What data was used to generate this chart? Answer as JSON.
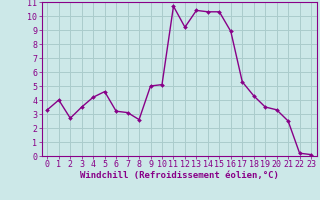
{
  "x": [
    0,
    1,
    2,
    3,
    4,
    5,
    6,
    7,
    8,
    9,
    10,
    11,
    12,
    13,
    14,
    15,
    16,
    17,
    18,
    19,
    20,
    21,
    22,
    23
  ],
  "y": [
    3.3,
    4.0,
    2.7,
    3.5,
    4.2,
    4.6,
    3.2,
    3.1,
    2.6,
    5.0,
    5.1,
    10.7,
    9.2,
    10.4,
    10.3,
    10.3,
    8.9,
    5.3,
    4.3,
    3.5,
    3.3,
    2.5,
    0.2,
    0.1
  ],
  "line_color": "#880088",
  "marker": "D",
  "marker_size": 2.0,
  "bg_color": "#cce8e8",
  "grid_color": "#aacccc",
  "xlabel": "Windchill (Refroidissement éolien,°C)",
  "xlabel_fontsize": 6.5,
  "xlim": [
    -0.5,
    23.5
  ],
  "ylim": [
    0,
    11
  ],
  "yticks": [
    0,
    1,
    2,
    3,
    4,
    5,
    6,
    7,
    8,
    9,
    10,
    11
  ],
  "xticks": [
    0,
    1,
    2,
    3,
    4,
    5,
    6,
    7,
    8,
    9,
    10,
    11,
    12,
    13,
    14,
    15,
    16,
    17,
    18,
    19,
    20,
    21,
    22,
    23
  ],
  "tick_fontsize": 6,
  "line_width": 1.0,
  "spine_color": "#880088",
  "axis_label_color": "#880088",
  "tick_color": "#880088"
}
